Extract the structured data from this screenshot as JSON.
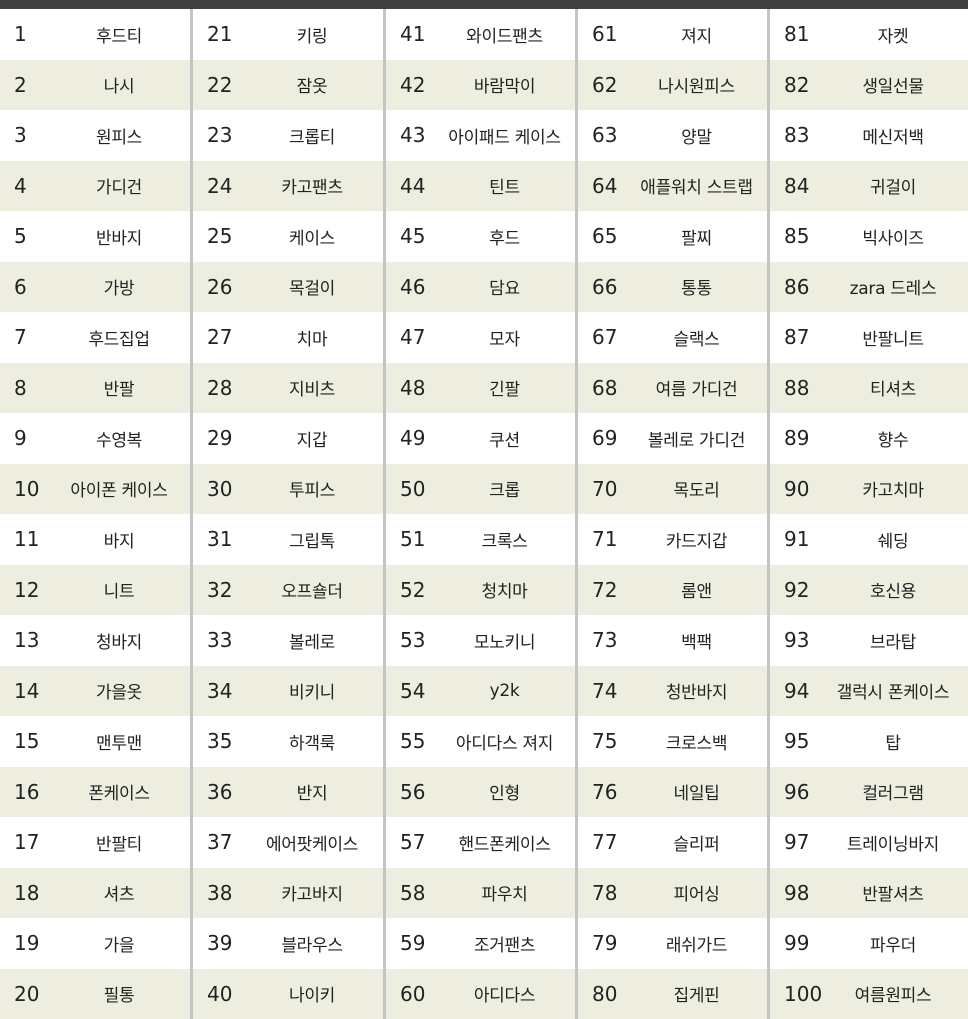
{
  "colors": {
    "header_bar": "#404040",
    "alt_row": "#eeeee0",
    "divider": "#c4c4c4"
  },
  "columns": [
    [
      "후드티",
      "나시",
      "원피스",
      "가디건",
      "반바지",
      "가방",
      "후드집업",
      "반팔",
      "수영복",
      "아이폰 케이스",
      "바지",
      "니트",
      "청바지",
      "가을옷",
      "맨투맨",
      "폰케이스",
      "반팔티",
      "셔츠",
      "가을",
      "필통"
    ],
    [
      "키링",
      "잠옷",
      "크롭티",
      "카고팬츠",
      "케이스",
      "목걸이",
      "치마",
      "지비츠",
      "지갑",
      "투피스",
      "그립톡",
      "오프숄더",
      "볼레로",
      "비키니",
      "하객룩",
      "반지",
      "에어팟케이스",
      "카고바지",
      "블라우스",
      "나이키"
    ],
    [
      "와이드팬츠",
      "바람막이",
      "아이패드 케이스",
      "틴트",
      "후드",
      "담요",
      "모자",
      "긴팔",
      "쿠션",
      "크롭",
      "크록스",
      "청치마",
      "모노키니",
      "y2k",
      "아디다스 져지",
      "인형",
      "핸드폰케이스",
      "파우치",
      "조거팬츠",
      "아디다스"
    ],
    [
      "져지",
      "나시원피스",
      "양말",
      "애플워치 스트랩",
      "팔찌",
      "통통",
      "슬랙스",
      "여름 가디건",
      "볼레로 가디건",
      "목도리",
      "카드지갑",
      "롬앤",
      "백팩",
      "청반바지",
      "크로스백",
      "네일팁",
      "슬리퍼",
      "피어싱",
      "래쉬가드",
      "집게핀"
    ],
    [
      "자켓",
      "생일선물",
      "메신저백",
      "귀걸이",
      "빅사이즈",
      "zara 드레스",
      "반팔니트",
      "티셔츠",
      "향수",
      "카고치마",
      "쉐딩",
      "호신용",
      "브라탑",
      "갤럭시 폰케이스",
      "탑",
      "컬러그램",
      "트레이닝바지",
      "반팔셔츠",
      "파우더",
      "여름원피스"
    ]
  ],
  "ranks": [
    [
      "1",
      "2",
      "3",
      "4",
      "5",
      "6",
      "7",
      "8",
      "9",
      "10",
      "11",
      "12",
      "13",
      "14",
      "15",
      "16",
      "17",
      "18",
      "19",
      "20"
    ],
    [
      "21",
      "22",
      "23",
      "24",
      "25",
      "26",
      "27",
      "28",
      "29",
      "30",
      "31",
      "32",
      "33",
      "34",
      "35",
      "36",
      "37",
      "38",
      "39",
      "40"
    ],
    [
      "41",
      "42",
      "43",
      "44",
      "45",
      "46",
      "47",
      "48",
      "49",
      "50",
      "51",
      "52",
      "53",
      "54",
      "55",
      "56",
      "57",
      "58",
      "59",
      "60"
    ],
    [
      "61",
      "62",
      "63",
      "64",
      "65",
      "66",
      "67",
      "68",
      "69",
      "70",
      "71",
      "72",
      "73",
      "74",
      "75",
      "76",
      "77",
      "78",
      "79",
      "80"
    ],
    [
      "81",
      "82",
      "83",
      "84",
      "85",
      "86",
      "87",
      "88",
      "89",
      "90",
      "91",
      "92",
      "93",
      "94",
      "95",
      "96",
      "97",
      "98",
      "99",
      "100"
    ]
  ]
}
